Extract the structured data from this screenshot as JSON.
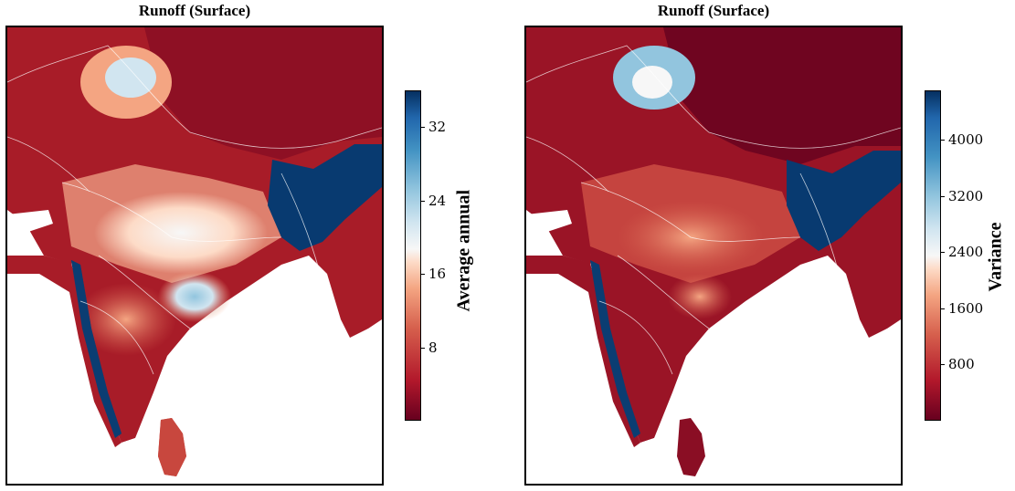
{
  "panels": [
    {
      "title": "Runoff (Surface)",
      "colorbar_label": "Average annual",
      "ticks": [
        "32",
        "24",
        "16",
        "8"
      ],
      "tick_values": [
        32,
        24,
        16,
        8
      ],
      "range": [
        0,
        36
      ]
    },
    {
      "title": "Runoff (Surface)",
      "colorbar_label": "Variance",
      "ticks": [
        "4000",
        "3200",
        "2400",
        "1600",
        "800"
      ],
      "tick_values": [
        4000,
        3200,
        2400,
        1600,
        800
      ],
      "range": [
        0,
        4700
      ]
    }
  ],
  "colormap": [
    "#67001f",
    "#b2182b",
    "#d6604d",
    "#f4a582",
    "#fddbc7",
    "#f7f7f7",
    "#d1e5f0",
    "#92c5de",
    "#4393c3",
    "#2166ac",
    "#053061"
  ]
}
